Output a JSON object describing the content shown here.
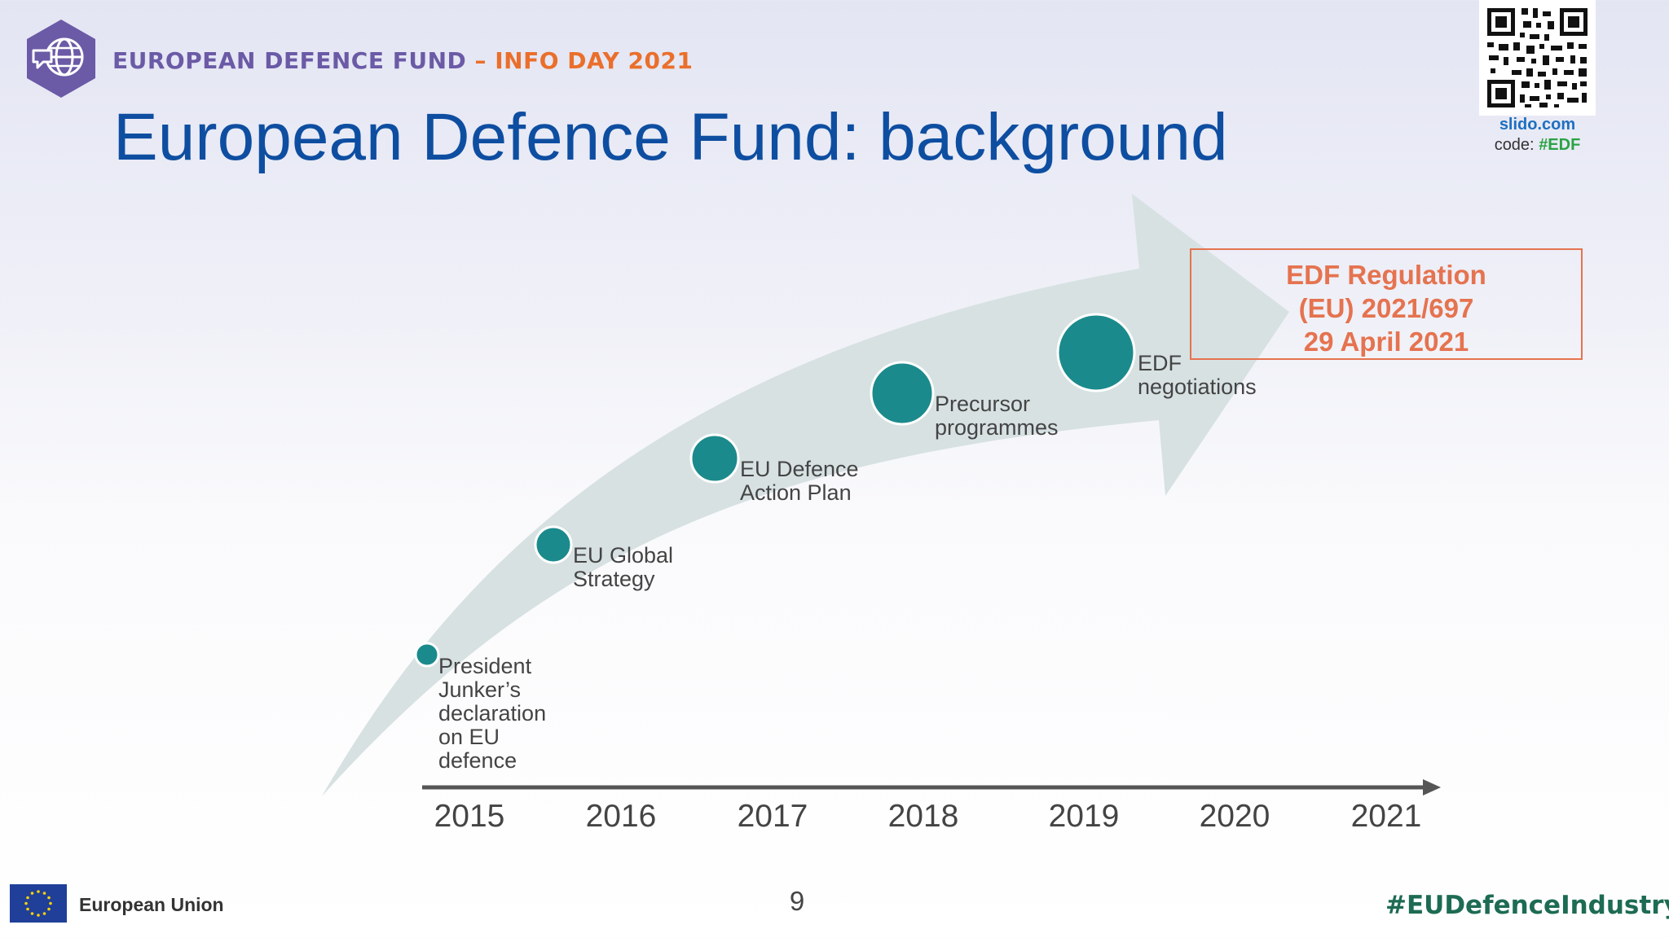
{
  "header": {
    "brand_name": "EUROPEAN DEFENCE FUND",
    "brand_event": "– INFO DAY 2021",
    "title": "European Defence Fund: background"
  },
  "slido": {
    "url": "slido.com",
    "code_label": "code:",
    "code_value": "#EDF"
  },
  "milestones": [
    {
      "lines": [
        "President",
        "Junker’s",
        "declaration",
        "on EU",
        "defence"
      ]
    },
    {
      "lines": [
        "EU Global",
        "Strategy"
      ]
    },
    {
      "lines": [
        "EU Defence",
        "Action Plan"
      ]
    },
    {
      "lines": [
        "Precursor",
        "programmes"
      ]
    },
    {
      "lines": [
        "EDF",
        "negotiations"
      ]
    }
  ],
  "regulation": {
    "line1": "EDF Regulation",
    "line2": "(EU) 2021/697",
    "line3": "29 April 2021"
  },
  "timeline": {
    "years": [
      "2015",
      "2016",
      "2017",
      "2018",
      "2019",
      "2020",
      "2021"
    ]
  },
  "footer": {
    "eu_label": "European Union",
    "page_number": "9",
    "hashtag": "#EUDefenceIndustry"
  },
  "colors": {
    "title": "#0e4ea1",
    "brand": "#6b5aa6",
    "event": "#ea6f2b",
    "milestone_dot": "#1b8a8c",
    "arrow": "#d7e1e2",
    "regulation": "#e5734f",
    "hashtag": "#1d6b53"
  }
}
